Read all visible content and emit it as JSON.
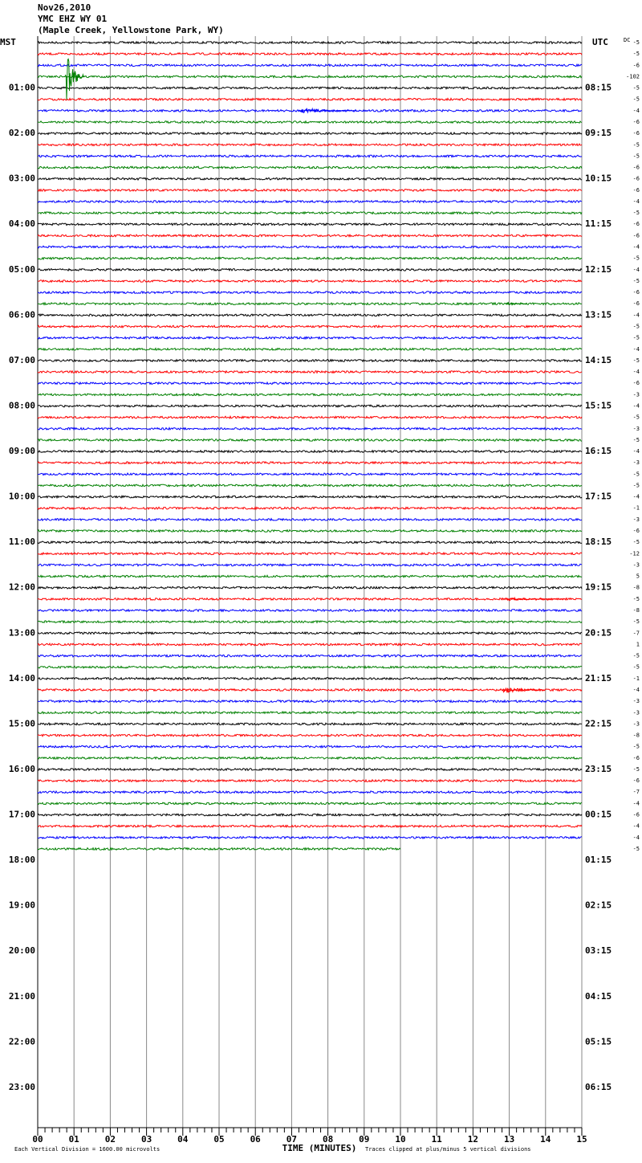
{
  "chart_data": {
    "type": "helicorder",
    "title_lines": [
      "Nov26,2010",
      "YMC EHZ WY 01",
      "(Maple Creek, Yellowstone Park, WY)"
    ],
    "left_zone": "MST",
    "right_zone": "UTC",
    "dc_label": "DC",
    "traces_per_hour": 4,
    "colors": [
      "#000000",
      "#ff0000",
      "#0000ff",
      "#008000"
    ],
    "left_labels": [
      "01:00",
      "02:00",
      "03:00",
      "04:00",
      "05:00",
      "06:00",
      "07:00",
      "08:00",
      "09:00",
      "10:00",
      "11:00",
      "12:00",
      "13:00",
      "14:00",
      "15:00",
      "16:00",
      "17:00",
      "18:00",
      "19:00",
      "20:00",
      "21:00",
      "22:00",
      "23:00"
    ],
    "right_labels": [
      "08:15",
      "09:15",
      "10:15",
      "11:15",
      "12:15",
      "13:15",
      "14:15",
      "15:15",
      "16:15",
      "17:15",
      "18:15",
      "19:15",
      "20:15",
      "21:15",
      "22:15",
      "23:15",
      "00:15",
      "01:15",
      "02:15",
      "03:15",
      "04:15",
      "05:15",
      "06:15"
    ],
    "dc_offsets": [
      -5,
      -5,
      -6,
      -102,
      -5,
      -5,
      -4,
      -6,
      -6,
      -5,
      -5,
      -6,
      -6,
      -6,
      -4,
      -5,
      -6,
      -6,
      -4,
      -5,
      -4,
      -5,
      -6,
      -6,
      -4,
      -5,
      -5,
      -4,
      -5,
      -4,
      -6,
      -3,
      -4,
      -5,
      -3,
      -5,
      -4,
      -3,
      -5,
      -5,
      -4,
      -1,
      -3,
      -6,
      -5,
      -12,
      -3,
      5,
      -8,
      -5,
      -8,
      -5,
      -7,
      1,
      -5,
      -5,
      -1,
      -4,
      -3,
      -3,
      -3,
      -8,
      -5,
      -6,
      -5,
      -6,
      -7,
      -4,
      -6,
      -4,
      -4,
      -5
    ],
    "last_trace_end": 10,
    "events": [
      {
        "row": 3,
        "start": 0.75,
        "end": 1.3,
        "amplitude": 5
      },
      {
        "row": 6,
        "start": 7.2,
        "end": 8.8,
        "amplitude": 0.6
      },
      {
        "row": 23,
        "start": 12.9,
        "end": 13.5,
        "amplitude": 0.3
      },
      {
        "row": 49,
        "start": 12.9,
        "end": 14.5,
        "amplitude": 0.3
      },
      {
        "row": 57,
        "start": 12.8,
        "end": 14.0,
        "amplitude": 0.6
      }
    ],
    "xlim": [
      0,
      15
    ],
    "xticks": [
      {
        "value": 0,
        "label": "00"
      },
      {
        "value": 1,
        "label": "01"
      },
      {
        "value": 2,
        "label": "02"
      },
      {
        "value": 3,
        "label": "03"
      },
      {
        "value": 4,
        "label": "04"
      },
      {
        "value": 5,
        "label": "05"
      },
      {
        "value": 6,
        "label": "06"
      },
      {
        "value": 7,
        "label": "07"
      },
      {
        "value": 8,
        "label": "08"
      },
      {
        "value": 9,
        "label": "09"
      },
      {
        "value": 10,
        "label": "10"
      },
      {
        "value": 11,
        "label": "11"
      },
      {
        "value": 12,
        "label": "12"
      },
      {
        "value": 13,
        "label": "13"
      },
      {
        "value": 14,
        "label": "14"
      },
      {
        "value": 15,
        "label": "15"
      }
    ],
    "minor_ticks_per_minute": 5,
    "xlabel": "TIME (MINUTES)",
    "scale_note": "Each Vertical Division = 1600.00 microvolts",
    "clip_note": "Traces clipped at plus/minus 5 vertical divisions"
  }
}
